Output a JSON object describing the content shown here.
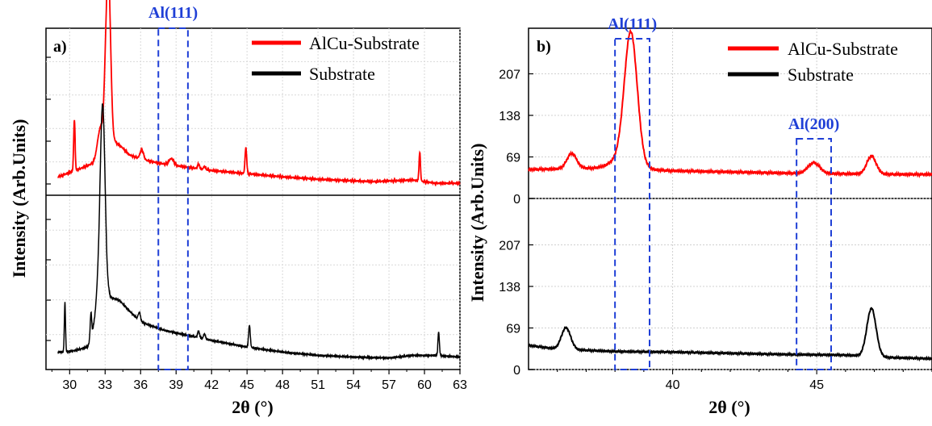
{
  "chart_data": [
    {
      "type": "line",
      "panel_label": "a)",
      "xlabel": "2θ (°)",
      "ylabel": "Intensity (Arb.Units)",
      "xlim": [
        28,
        63
      ],
      "x_ticks": [
        "30",
        "33",
        "36",
        "39",
        "42",
        "45",
        "48",
        "51",
        "54",
        "57",
        "60",
        "63"
      ],
      "y_tick_labels_shown": false,
      "grid": true,
      "legend_position": "top-right",
      "legend": [
        "AlCu-Substrate",
        "Substrate"
      ],
      "annotations": [
        {
          "text": "Al(111)",
          "x_range": [
            37.5,
            40
          ]
        }
      ],
      "series": [
        {
          "name": "AlCu-Substrate",
          "color": "#ff0000",
          "subplot": "top",
          "baseline": 0.08,
          "bg": [
            [
              29,
              0.1
            ],
            [
              30.5,
              0.14
            ],
            [
              32.5,
              0.2
            ],
            [
              33.8,
              0.32
            ],
            [
              34.5,
              0.28
            ],
            [
              35,
              0.24
            ],
            [
              36,
              0.21
            ],
            [
              38,
              0.18
            ],
            [
              40,
              0.16
            ],
            [
              42,
              0.14
            ],
            [
              45,
              0.12
            ],
            [
              48,
              0.1
            ],
            [
              51,
              0.085
            ],
            [
              54,
              0.075
            ],
            [
              56,
              0.07
            ],
            [
              57,
              0.075
            ],
            [
              59,
              0.08
            ],
            [
              61,
              0.06
            ],
            [
              63,
              0.06
            ]
          ],
          "peaks": [
            [
              30.4,
              0.32,
              0.06
            ],
            [
              32.6,
              0.2,
              0.25
            ],
            [
              33.3,
              1.0,
              0.18
            ],
            [
              33.05,
              0.35,
              0.15
            ],
            [
              36.1,
              0.06,
              0.15
            ],
            [
              38.6,
              0.04,
              0.2
            ],
            [
              40.9,
              0.03,
              0.08
            ],
            [
              41.4,
              0.02,
              0.08
            ],
            [
              44.9,
              0.16,
              0.07
            ],
            [
              59.6,
              0.18,
              0.06
            ]
          ],
          "noise": 0.006
        },
        {
          "name": "Substrate",
          "color": "#000000",
          "subplot": "bottom",
          "baseline": 0.07,
          "bg": [
            [
              29,
              0.09
            ],
            [
              29.6,
              0.09
            ],
            [
              30.5,
              0.1
            ],
            [
              31.5,
              0.12
            ],
            [
              32.3,
              0.25
            ],
            [
              33.3,
              0.42
            ],
            [
              34.2,
              0.4
            ],
            [
              35,
              0.34
            ],
            [
              36,
              0.27
            ],
            [
              38,
              0.22
            ],
            [
              40,
              0.19
            ],
            [
              42,
              0.16
            ],
            [
              45,
              0.12
            ],
            [
              48,
              0.09
            ],
            [
              51,
              0.07
            ],
            [
              54,
              0.06
            ],
            [
              57,
              0.055
            ],
            [
              59,
              0.07
            ],
            [
              61,
              0.07
            ],
            [
              63,
              0.06
            ]
          ],
          "peaks": [
            [
              29.6,
              0.3,
              0.05
            ],
            [
              31.8,
              0.15,
              0.06
            ],
            [
              32.8,
              1.0,
              0.2
            ],
            [
              32.6,
              0.3,
              0.3
            ],
            [
              35.9,
              0.05,
              0.1
            ],
            [
              40.9,
              0.04,
              0.08
            ],
            [
              41.4,
              0.03,
              0.08
            ],
            [
              45.2,
              0.13,
              0.07
            ],
            [
              61.2,
              0.14,
              0.06
            ]
          ],
          "noise": 0.008
        }
      ]
    },
    {
      "type": "line",
      "panel_label": "b)",
      "xlabel": "2θ (°)",
      "ylabel": "Intensity (Arb.Units)",
      "xlim": [
        35,
        49
      ],
      "ylim": [
        0,
        280
      ],
      "x_ticks": [
        "40",
        "45"
      ],
      "y_ticks": [
        "0",
        "69",
        "138",
        "207"
      ],
      "grid": true,
      "legend_position": "top-right",
      "legend": [
        "AlCu-Substrate",
        "Substrate"
      ],
      "annotations": [
        {
          "text": "Al(111)",
          "x_range": [
            38,
            39.2
          ]
        },
        {
          "text": "Al(200)",
          "x_range": [
            44.3,
            45.5
          ]
        }
      ],
      "series": [
        {
          "name": "AlCu-Substrate",
          "color": "#ff0000",
          "subplot": "top",
          "baseline": 45,
          "bg": [
            [
              35,
              48
            ],
            [
              37,
              50
            ],
            [
              38.2,
              51
            ],
            [
              39,
              48
            ],
            [
              40,
              46
            ],
            [
              42,
              44
            ],
            [
              44,
              42
            ],
            [
              46,
              41
            ],
            [
              48,
              40
            ],
            [
              49,
              40
            ]
          ],
          "peaks": [
            [
              36.5,
              25,
              0.17
            ],
            [
              38.55,
              210,
              0.22
            ],
            [
              38.35,
              20,
              0.4
            ],
            [
              44.9,
              18,
              0.2
            ],
            [
              46.9,
              30,
              0.16
            ]
          ],
          "noise": 2.2
        },
        {
          "name": "Substrate",
          "color": "#000000",
          "subplot": "bottom",
          "baseline": 30,
          "bg": [
            [
              35,
              40
            ],
            [
              36,
              34
            ],
            [
              37,
              32
            ],
            [
              38,
              30
            ],
            [
              40,
              29
            ],
            [
              42,
              27
            ],
            [
              44,
              25
            ],
            [
              46,
              24
            ],
            [
              47.5,
              20
            ],
            [
              49,
              18
            ]
          ],
          "peaks": [
            [
              36.3,
              36,
              0.16
            ],
            [
              46.9,
              80,
              0.16
            ]
          ],
          "noise": 1.8
        }
      ]
    }
  ]
}
